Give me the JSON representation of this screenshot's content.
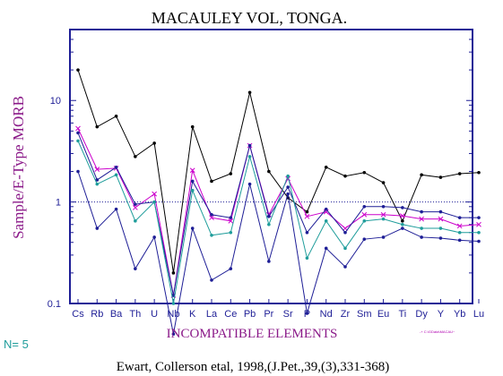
{
  "colors": {
    "frame": "#1e1e96",
    "accent": "#8b1a89",
    "teal": "#1f9d9b"
  },
  "chart_data": {
    "type": "line",
    "title": "MACAULEY VOL, TONGA.",
    "ylabel": "Sample/E-Type MORB",
    "xlabel": "INCOMPATIBLE ELEMENTS",
    "yscale": "log",
    "ylim": [
      0.1,
      50
    ],
    "yticks": [
      {
        "value": 0.1,
        "label": "0.1"
      },
      {
        "value": 1,
        "label": "1"
      },
      {
        "value": 10,
        "label": "10"
      }
    ],
    "reference_line": 1,
    "categories": [
      "Cs",
      "Rb",
      "Ba",
      "Th",
      "U",
      "Nb",
      "K",
      "La",
      "Ce",
      "Pb",
      "Pr",
      "Sr",
      "P",
      "Nd",
      "Zr",
      "Sm",
      "Eu",
      "Ti",
      "Dy",
      "Y",
      "Yb",
      "Lu"
    ],
    "series": [
      {
        "color": "#000000",
        "marker": "dot",
        "values": [
          20,
          5.5,
          7.0,
          2.8,
          3.8,
          0.2,
          5.5,
          1.6,
          1.9,
          12,
          2.0,
          1.1,
          0.8,
          2.2,
          1.8,
          1.95,
          1.55,
          0.65,
          1.85,
          1.75,
          1.9,
          1.95
        ]
      },
      {
        "color": "#cc00cc",
        "marker": "x",
        "values": [
          5.3,
          2.1,
          2.15,
          0.88,
          1.2,
          0.12,
          2.05,
          0.7,
          0.65,
          3.6,
          0.75,
          1.7,
          0.72,
          0.8,
          0.55,
          0.75,
          0.75,
          0.73,
          0.68,
          0.68,
          0.58,
          0.6
        ]
      },
      {
        "color": "#1e1e96",
        "marker": "dot",
        "values": [
          4.8,
          1.65,
          2.2,
          0.95,
          1.0,
          0.12,
          1.6,
          0.75,
          0.7,
          3.6,
          0.72,
          1.4,
          0.5,
          0.85,
          0.5,
          0.9,
          0.9,
          0.88,
          0.8,
          0.8,
          0.7,
          0.7
        ]
      },
      {
        "color": "#1f9d9b",
        "marker": "dot",
        "values": [
          4.0,
          1.5,
          1.85,
          0.65,
          1.0,
          0.1,
          1.3,
          0.47,
          0.5,
          2.8,
          0.6,
          1.8,
          0.28,
          0.65,
          0.35,
          0.65,
          0.68,
          0.6,
          0.55,
          0.55,
          0.5,
          0.5
        ]
      },
      {
        "color": "#1e1e96",
        "marker": "dot",
        "values": [
          2.0,
          0.55,
          0.85,
          0.22,
          0.45,
          0.05,
          0.55,
          0.17,
          0.22,
          1.5,
          0.26,
          1.2,
          0.08,
          0.35,
          0.23,
          0.43,
          0.45,
          0.55,
          0.45,
          0.44,
          0.42,
          0.41
        ]
      }
    ]
  },
  "footer": {
    "n_count": "N= 5",
    "citation": "Ewart, Collerson etal, 1998,(J.Pet.,39,(3),331-368)",
    "path_text": "-+ C:\\GData\\MACAU~"
  }
}
